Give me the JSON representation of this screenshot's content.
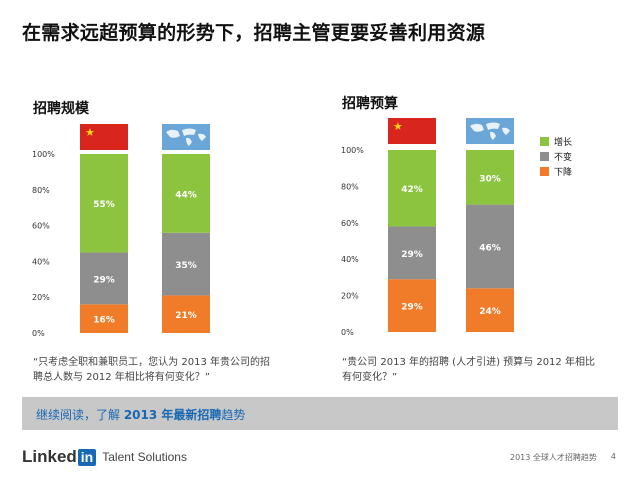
{
  "header": {
    "title": "在需求远超预算的形势下，招聘主管更要妥善利用资源"
  },
  "colors": {
    "increase": "#8cc33f",
    "flat": "#8e8e8e",
    "decrease": "#f07b28",
    "banner_bg": "#c8c8c8",
    "link": "#1769b4"
  },
  "left_panel": {
    "heading": "招聘规模",
    "caption_line1": "“只考虑全职和兼职员工，您认为 2013 年贵公司的招",
    "caption_line2": "聘总人数与 2012 年相比将有何变化？”"
  },
  "right_panel": {
    "heading": "招聘预算",
    "caption_line1": "“贵公司 2013 年的招聘 (人才引进) 预算与 2012 年相比",
    "caption_line2": "有何变化？”"
  },
  "legend": {
    "increase": "增长",
    "flat": "不变",
    "decrease": "下降"
  },
  "chart_data": [
    {
      "type": "bar",
      "stacked": true,
      "title": "招聘规模",
      "categories": [
        "China",
        "Global"
      ],
      "series": [
        {
          "name": "下降",
          "values": [
            16,
            21
          ]
        },
        {
          "name": "不变",
          "values": [
            29,
            35
          ]
        },
        {
          "name": "增长",
          "values": [
            55,
            44
          ]
        }
      ],
      "yticks": [
        "0%",
        "20%",
        "40%",
        "60%",
        "80%",
        "100%"
      ],
      "ylim": [
        0,
        100
      ]
    },
    {
      "type": "bar",
      "stacked": true,
      "title": "招聘预算",
      "categories": [
        "China",
        "Global"
      ],
      "series": [
        {
          "name": "下降",
          "values": [
            29,
            24
          ]
        },
        {
          "name": "不变",
          "values": [
            29,
            46
          ]
        },
        {
          "name": "增长",
          "values": [
            42,
            30
          ]
        }
      ],
      "yticks": [
        "0%",
        "20%",
        "40%",
        "60%",
        "80%",
        "100%"
      ],
      "ylim": [
        0,
        100
      ]
    }
  ],
  "banner": {
    "prefix": "继续阅读，了解 ",
    "highlight": "2013 年最新招聘",
    "suffix": "趋势"
  },
  "footer": {
    "logo_text": "Linked",
    "logo_in": "in",
    "logo_sub": "Talent Solutions",
    "report_name": "2013 全球人才招聘趋势",
    "page_number": "4"
  }
}
